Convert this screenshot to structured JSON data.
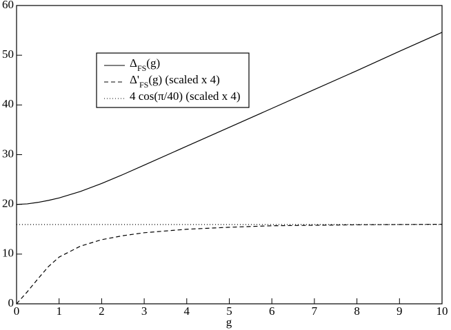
{
  "chart_data": {
    "type": "line",
    "x_label": "g",
    "x": [
      0,
      0.25,
      0.5,
      0.75,
      1,
      1.5,
      2,
      2.5,
      3,
      4,
      5,
      6,
      7,
      8,
      9,
      10
    ],
    "series": [
      {
        "name": "ΔFS(g)",
        "color": "#000000",
        "linestyle": "solid",
        "values": [
          20,
          20.1,
          20.4,
          20.8,
          21.3,
          22.6,
          24.2,
          26.0,
          27.9,
          31.7,
          35.5,
          39.3,
          43.1,
          46.9,
          50.8,
          54.6
        ]
      },
      {
        "name": "Δ'FS(g) (scaled x 4)",
        "color": "#000000",
        "linestyle": "dashed",
        "values": [
          0,
          2.4,
          5.0,
          7.5,
          9.4,
          11.6,
          12.9,
          13.7,
          14.3,
          15.0,
          15.4,
          15.7,
          15.8,
          15.9,
          15.95,
          16
        ]
      },
      {
        "name": "4 cos(π/40) (scaled x 4)",
        "color": "#000000",
        "linestyle": "dotted",
        "values": [
          15.95,
          15.95,
          15.95,
          15.95,
          15.95,
          15.95,
          15.95,
          15.95,
          15.95,
          15.95,
          15.95,
          15.95,
          15.95,
          15.95,
          15.95,
          15.95
        ]
      }
    ],
    "xlim": [
      0,
      10
    ],
    "xticks": [
      0,
      1,
      2,
      3,
      4,
      5,
      6,
      7,
      8,
      9,
      10
    ],
    "ylim": [
      0,
      60
    ],
    "yticks": [
      0,
      10,
      20,
      30,
      40,
      50,
      60
    ],
    "grid": false,
    "legend": "upper left"
  }
}
